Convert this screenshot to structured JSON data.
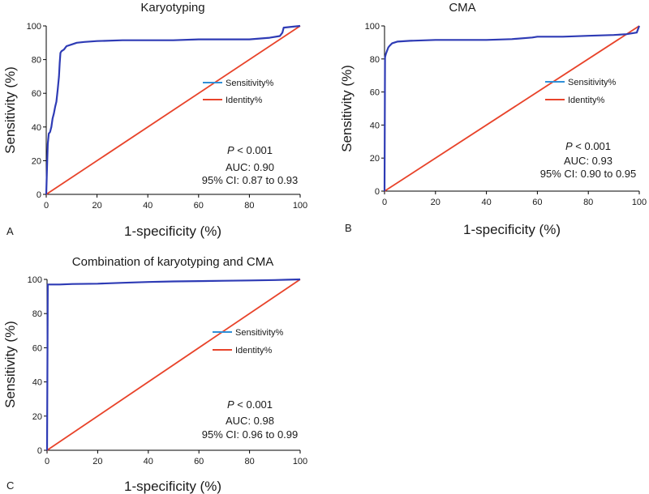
{
  "colors": {
    "sensitivity": "#2e3bb5",
    "identity": "#e8432a",
    "legend_sensitivity": "#2f8fd8",
    "axis": "#000000"
  },
  "chart_data": [
    {
      "type": "line",
      "panel": "A",
      "title": "Karyotyping",
      "xlabel": "1-specificity (%)",
      "ylabel": "Sensitivity (%)",
      "xlim": [
        0,
        100
      ],
      "ylim": [
        0,
        100
      ],
      "xticks": [
        "0",
        "20",
        "40",
        "60",
        "80",
        "100"
      ],
      "yticks": [
        "0",
        "20",
        "40",
        "60",
        "80",
        "100"
      ],
      "legend": [
        "Sensitivity%",
        "Identity%"
      ],
      "stats": {
        "p_prefix": "P",
        "p_rest": " < 0.001",
        "auc": "AUC: 0.90",
        "ci": "95% CI: 0.87 to 0.93"
      },
      "series": [
        {
          "name": "Sensitivity%",
          "x": [
            0,
            0.3,
            0.6,
            1,
            1.5,
            2,
            2.5,
            3,
            3.5,
            4,
            4.5,
            5,
            5.3,
            5.6,
            6,
            7,
            8,
            10,
            12,
            15,
            20,
            30,
            40,
            50,
            60,
            70,
            80,
            88,
            92,
            93,
            93.5,
            100
          ],
          "y": [
            0,
            15,
            30,
            36,
            37,
            40,
            45,
            48,
            52,
            55,
            62,
            70,
            78,
            84,
            85,
            86,
            88,
            89,
            90,
            90.5,
            91,
            91.5,
            91.5,
            91.5,
            92,
            92,
            92,
            93,
            94,
            96,
            99,
            100
          ]
        },
        {
          "name": "Identity%",
          "x": [
            0,
            100
          ],
          "y": [
            0,
            100
          ]
        }
      ]
    },
    {
      "type": "line",
      "panel": "B",
      "title": "CMA",
      "xlabel": "1-specificity (%)",
      "ylabel": "Sensitivity (%)",
      "xlim": [
        0,
        100
      ],
      "ylim": [
        0,
        100
      ],
      "xticks": [
        "0",
        "20",
        "40",
        "60",
        "80",
        "100"
      ],
      "yticks": [
        "0",
        "20",
        "40",
        "60",
        "80",
        "100"
      ],
      "legend": [
        "Sensitivity%",
        "Identity%"
      ],
      "stats": {
        "p_prefix": "P",
        "p_rest": " < 0.001",
        "auc": "AUC: 0.93",
        "ci": "95% CI: 0.90 to 0.95"
      },
      "series": [
        {
          "name": "Sensitivity%",
          "x": [
            0,
            0.2,
            0.5,
            1,
            1.5,
            2,
            3,
            5,
            10,
            20,
            30,
            40,
            50,
            58,
            60,
            70,
            80,
            90,
            95,
            97,
            99,
            100
          ],
          "y": [
            0,
            81,
            83,
            85,
            87,
            88,
            89.5,
            90.5,
            91,
            91.5,
            91.5,
            91.5,
            92,
            93,
            93.5,
            93.5,
            94,
            94.5,
            95,
            95.5,
            96,
            100
          ]
        },
        {
          "name": "Identity%",
          "x": [
            0,
            100
          ],
          "y": [
            0,
            100
          ]
        }
      ]
    },
    {
      "type": "line",
      "panel": "C",
      "title": "Combination of karyotyping and CMA",
      "xlabel": "1-specificity (%)",
      "ylabel": "Sensitivity (%)",
      "xlim": [
        0,
        100
      ],
      "ylim": [
        0,
        100
      ],
      "xticks": [
        "0",
        "20",
        "40",
        "60",
        "80",
        "100"
      ],
      "yticks": [
        "0",
        "20",
        "40",
        "60",
        "80",
        "100"
      ],
      "legend": [
        "Sensitivity%",
        "Identity%"
      ],
      "stats": {
        "p_prefix": "P",
        "p_rest": " < 0.001",
        "auc": "AUC: 0.98",
        "ci": "95% CI: 0.96 to 0.99"
      },
      "series": [
        {
          "name": "Sensitivity%",
          "x": [
            0,
            0.3,
            2,
            5,
            10,
            20,
            30,
            40,
            50,
            60,
            70,
            80,
            90,
            95,
            100
          ],
          "y": [
            0,
            97,
            97,
            97,
            97.3,
            97.5,
            98,
            98.5,
            98.8,
            99,
            99.2,
            99.4,
            99.6,
            99.8,
            100
          ]
        },
        {
          "name": "Identity%",
          "x": [
            0,
            100
          ],
          "y": [
            0,
            100
          ]
        }
      ]
    }
  ]
}
